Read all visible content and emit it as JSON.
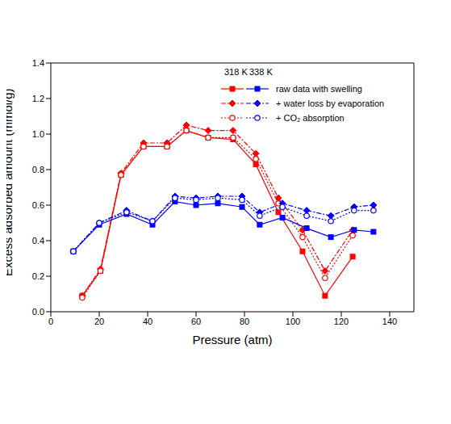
{
  "chart_data": {
    "type": "line",
    "x_label": "Pressure (atm)",
    "y_label": "Excess adsorbed amount (mmol/g)",
    "xlim": [
      0,
      150
    ],
    "xticks": [
      0,
      20,
      40,
      60,
      80,
      100,
      120,
      140
    ],
    "ylim": [
      0,
      1.4
    ],
    "yticks": [
      {
        "value": 0,
        "label": "0.0"
      },
      0.2,
      0.4,
      0.6,
      0.8,
      {
        "value": 1,
        "label": "1.0"
      },
      1.2,
      1.4
    ],
    "grid": false,
    "legend": "upper right",
    "series": [
      {
        "name": "raw data with swelling",
        "temperature": "318 K",
        "color": "#ff0000",
        "marker": "square",
        "line_style": "solid",
        "x": [
          13,
          20.5,
          29,
          38.3,
          48,
          56,
          65,
          75.3,
          84.7,
          94,
          104,
          113.3,
          124.7
        ],
        "values": [
          0.09,
          0.23,
          0.77,
          0.93,
          0.93,
          1.02,
          0.98,
          0.97,
          0.83,
          0.56,
          0.34,
          0.09,
          0.31
        ]
      },
      {
        "name": "+ water loss by evaporation",
        "temperature": "318 K",
        "color": "#ff0000",
        "marker": "diamond",
        "line_style": "dashdot",
        "x": [
          13,
          20.5,
          29,
          38.3,
          48,
          56,
          65,
          75.3,
          84.7,
          94,
          104,
          113.3,
          124.7
        ],
        "values": [
          0.09,
          0.24,
          0.78,
          0.95,
          0.95,
          1.05,
          1.02,
          1.02,
          0.89,
          0.64,
          0.46,
          0.23,
          0.46
        ]
      },
      {
        "name": "+ CO₂ absorption",
        "temperature": "318 K",
        "color": "#ff0000",
        "marker": "circle_open",
        "line_style": "dotted",
        "x": [
          13,
          20.5,
          29,
          38.3,
          48,
          56,
          65,
          75.3,
          84.7,
          94,
          104,
          113.3,
          124.7
        ],
        "values": [
          0.08,
          0.23,
          0.77,
          0.93,
          0.93,
          1.02,
          0.98,
          0.98,
          0.86,
          0.61,
          0.42,
          0.19,
          0.43
        ]
      },
      {
        "name": "raw data with swelling",
        "temperature": "338 K",
        "color": "#0000ff",
        "marker": "square",
        "line_style": "solid",
        "x": [
          9.3,
          20,
          31.3,
          42,
          51.3,
          60,
          69,
          79,
          86.3,
          95.7,
          105.7,
          115.7,
          125.3,
          133.3
        ],
        "values": [
          0.34,
          0.49,
          0.55,
          0.49,
          0.62,
          0.6,
          0.61,
          0.59,
          0.49,
          0.53,
          0.47,
          0.42,
          0.46,
          0.45
        ]
      },
      {
        "name": "+ water loss by evaporation",
        "temperature": "338 K",
        "color": "#0000ff",
        "marker": "diamond",
        "line_style": "dashdot",
        "x": [
          9.3,
          20,
          31.3,
          42,
          51.3,
          60,
          69,
          79,
          86.3,
          95.7,
          105.7,
          115.7,
          125.3,
          133.3
        ],
        "values": [
          0.34,
          0.5,
          0.57,
          0.51,
          0.65,
          0.64,
          0.65,
          0.65,
          0.56,
          0.61,
          0.57,
          0.54,
          0.59,
          0.6
        ]
      },
      {
        "name": "+ CO₂ absorption",
        "temperature": "338 K",
        "color": "#0000ff",
        "marker": "circle_open",
        "line_style": "dotted",
        "x": [
          9.3,
          20,
          31.3,
          42,
          51.3,
          60,
          69,
          79,
          86.3,
          95.7,
          105.7,
          115.7,
          125.3,
          133.3
        ],
        "values": [
          0.34,
          0.5,
          0.56,
          0.51,
          0.64,
          0.63,
          0.64,
          0.63,
          0.54,
          0.59,
          0.54,
          0.51,
          0.57,
          0.57
        ]
      }
    ]
  }
}
